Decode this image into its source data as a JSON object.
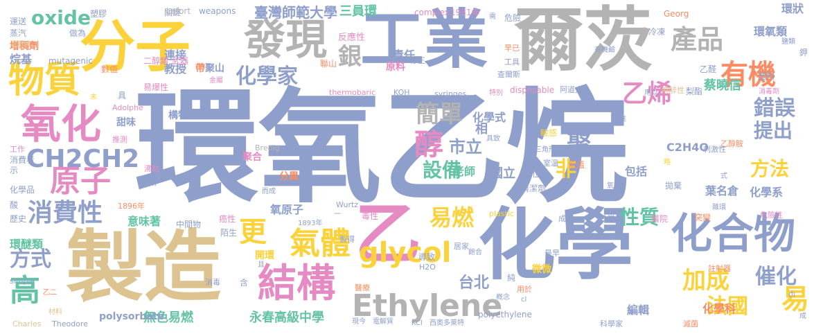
{
  "colors": {
    "blue": "#8f9fcb",
    "gray": "#b3b3b3",
    "tan": "#ddc38f",
    "yellow": "#fbd239",
    "orange": "#fb8c62",
    "teal": "#64c3a6",
    "green": "#a8d65a",
    "pink": "#e58ac2"
  },
  "words": [
    "環氧乙烷",
    "工業",
    "爾茨",
    "製造",
    "化學",
    "分子",
    "發現",
    "乙",
    "結構",
    "Ethylene",
    "glycol",
    "化合物",
    "氧化",
    "物質",
    "產品",
    "有機",
    "CH2CH2",
    "原子",
    "醇",
    "氣體",
    "消費性",
    "銀",
    "化學家",
    "乙烯",
    "聚",
    "簡單",
    "易燃",
    "非",
    "更",
    "加成",
    "錯誤",
    "提出",
    "方法",
    "催化",
    "高",
    "方式",
    "易",
    "法國",
    "oxide",
    "設備",
    "性質",
    "市立",
    "永春高級中學",
    "台北",
    "臺灣師範大學",
    "三員環",
    "責任",
    "連接",
    "教授",
    "環狀",
    "環氧類",
    "蔡曉信",
    "葉名倉",
    "化學式",
    "C2H4O",
    "相",
    "國立",
    "老師",
    "包括",
    "化學系",
    "分異",
    "聚合",
    "環醚類",
    "意味著",
    "無色易燃",
    "polysorbate",
    "化學科",
    "編輯",
    "氧原子",
    "構物",
    "甜味",
    "二醇類",
    "武器",
    "原料",
    "反應性",
    "帶",
    "聚山",
    "聯山",
    "金屬",
    "易爆性",
    "數值",
    "mutagenic",
    "烷基",
    "增稠劑",
    "蒸汽",
    "溫壓式",
    "做為",
    "運送",
    "塑膠",
    "關鍵",
    "Lefort",
    "weapons",
    "complex",
    "1931年",
    "需",
    "危險",
    "冷凍",
    "Georg",
    "鹽類",
    "有機鹼",
    "乙醛",
    "梨酯",
    "塑料",
    "消毒劑",
    "麻醉性",
    "查爾斯",
    "阿道夫",
    "disposable",
    "syringes",
    "特別",
    "KOH",
    "thermobaric",
    "工具",
    "早已",
    "修正",
    "Adolphe",
    "工作",
    "推測",
    "消費者",
    "示",
    "化學品",
    "酸",
    "歷史",
    "沸點",
    "溶劑",
    "Bredig",
    "1859年",
    "1896年",
    "1893年",
    "癌性",
    "毒性",
    "陌生",
    "中間物",
    "開環",
    "製得",
    "H2O",
    "純",
    "用於",
    "微微",
    "Wurtz",
    "plastic",
    "成份",
    "日常",
    "醫院",
    "突變",
    "最早",
    "註射器",
    "清潔劑",
    "拋棄",
    "地位",
    "低溫",
    "室溫",
    "三角形",
    "敏感",
    "乙醇胺",
    "刺激性",
    "危險性",
    "雜環",
    "Charles",
    "Theodore",
    "simple",
    "材料",
    "乙二",
    "消毒",
    "含",
    "醫療",
    "導致",
    "居家",
    "現今",
    "電解質",
    "KCl",
    "西奧多萊特",
    "polyethylene",
    "科學家",
    "滅菌",
    "Cl",
    "成",
    "具致",
    "產業",
    "式",
    "氧",
    "具",
    "性",
    "未",
    "醚",
    "而成",
    "一",
    "且",
    "用以",
    "飽合",
    "概念",
    "cl",
    "l",
    "鉀",
    "略"
  ]
}
